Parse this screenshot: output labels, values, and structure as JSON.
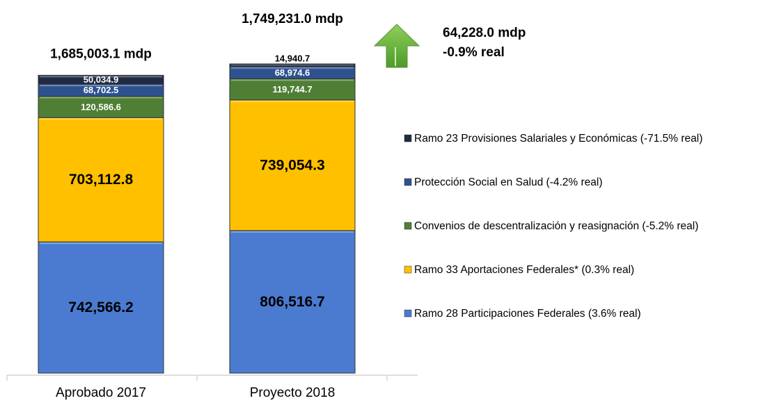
{
  "chart_data": {
    "type": "stacked_bar",
    "categories": [
      "Aprobado 2017",
      "Proyecto 2018"
    ],
    "series": [
      {
        "name": "Ramo 28 Participaciones Federales (3.6% real)",
        "color": "#4a7bd0",
        "values": [
          742566.2,
          806516.7
        ],
        "value_labels": [
          "742,566.2",
          "806,516.7"
        ]
      },
      {
        "name": "Ramo 33 Aportaciones Federales* (0.3% real)",
        "color": "#ffc000",
        "values": [
          703112.8,
          739054.3
        ],
        "value_labels": [
          "703,112.8",
          "739,054.3"
        ]
      },
      {
        "name": "Convenios de descentralización y reasignación (-5.2% real)",
        "color": "#4f7f35",
        "values": [
          120586.6,
          119744.7
        ],
        "value_labels": [
          "120,586.6",
          "119,744.7"
        ]
      },
      {
        "name": "Protección Social en Salud (-4.2% real)",
        "color": "#2e528f",
        "values": [
          68702.5,
          68974.6
        ],
        "value_labels": [
          "68,702.5",
          "68,974.6"
        ]
      },
      {
        "name": "Ramo 23 Provisiones Salariales y Económicas (-71.5% real)",
        "color": "#1f2a44",
        "values": [
          50034.9,
          14940.7
        ],
        "value_labels": [
          "50,034.9",
          "14,940.7"
        ]
      }
    ],
    "totals": {
      "values": [
        1685003.1,
        1749231.0
      ],
      "value_labels": [
        "1,685,003.1 mdp",
        "1,749,231.0 mdp"
      ]
    },
    "difference": {
      "value": 64228.0,
      "label": "64,228.0 mdp"
    },
    "real_change": {
      "value": -0.9,
      "label": "-0.9% real"
    }
  }
}
